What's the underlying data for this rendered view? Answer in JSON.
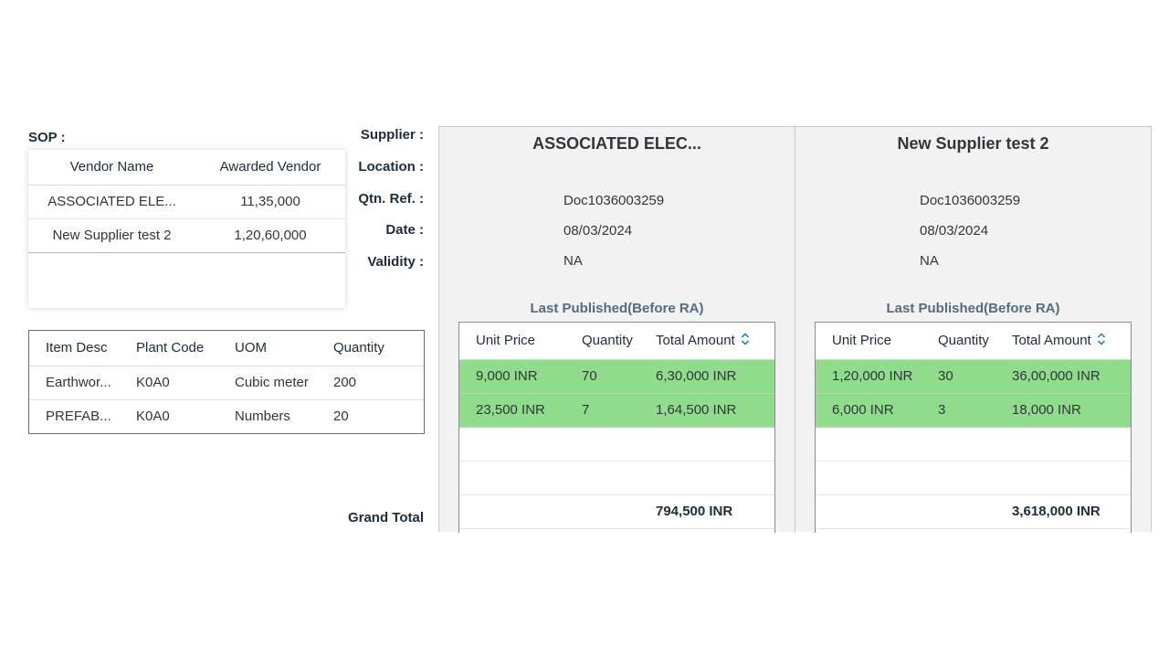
{
  "sop": {
    "label": "SOP :",
    "columns": [
      "Vendor Name",
      "Awarded Vendor"
    ],
    "rows": [
      {
        "vendor": "ASSOCIATED ELE...",
        "awarded": "11,35,000"
      },
      {
        "vendor": "New Supplier test 2",
        "awarded": "1,20,60,000"
      }
    ]
  },
  "items": {
    "columns": [
      "Item Desc",
      "Plant Code",
      "UOM",
      "Quantity"
    ],
    "rows": [
      {
        "desc": "Earthwor...",
        "plant": "K0A0",
        "uom": "Cubic meter",
        "qty": "200"
      },
      {
        "desc": "PREFAB...",
        "plant": "K0A0",
        "uom": "Numbers",
        "qty": "20"
      }
    ]
  },
  "labels": {
    "supplier": "Supplier :",
    "location": "Location :",
    "qtn_ref": "Qtn. Ref. :",
    "date": "Date :",
    "validity": "Validity :",
    "grand_total": "Grand Total"
  },
  "suppliers": [
    {
      "name": "ASSOCIATED ELEC...",
      "qtn_ref": "Doc1036003259",
      "date": "08/03/2024",
      "validity": "NA",
      "subtitle": "Last Published(Before RA)",
      "columns": [
        "Unit Price",
        "Quantity",
        "Total Amount"
      ],
      "rows": [
        {
          "unit_price": "9,000 INR",
          "quantity": "70",
          "total": "6,30,000 INR"
        },
        {
          "unit_price": "23,500 INR",
          "quantity": "7",
          "total": "1,64,500 INR"
        }
      ],
      "grand_total": "794,500 INR"
    },
    {
      "name": "New Supplier test 2",
      "qtn_ref": "Doc1036003259",
      "date": "08/03/2024",
      "validity": "NA",
      "subtitle": "Last Published(Before RA)",
      "columns": [
        "Unit Price",
        "Quantity",
        "Total Amount"
      ],
      "rows": [
        {
          "unit_price": "1,20,000 INR",
          "quantity": "30",
          "total": "36,00,000 INR"
        },
        {
          "unit_price": "6,000 INR",
          "quantity": "3",
          "total": "18,000 INR"
        }
      ],
      "grand_total": "3,618,000 INR"
    }
  ],
  "colors": {
    "highlight_row": "#8fdc8c",
    "panel_bg": "#f2f2f2",
    "subtitle": "#556b82"
  },
  "icons": {
    "sort": "sort-icon"
  }
}
